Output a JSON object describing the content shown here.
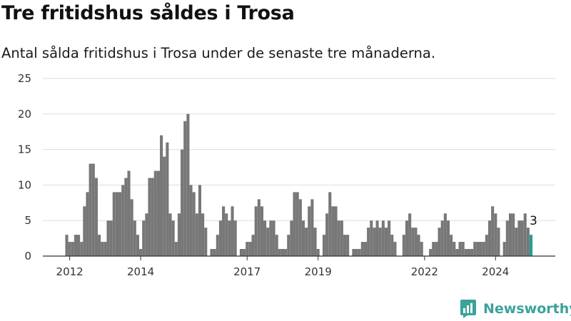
{
  "title": "Tre fritidshus såldes i Trosa",
  "subtitle": "Antal sålda fritidshus i Trosa under de senaste tre månaderna.",
  "brand": "Newsworthy",
  "colors": {
    "bar": "#777777",
    "highlight": "#2a9d8f",
    "grid": "#dddddd",
    "brand": "#3aa39a"
  },
  "chart_data": {
    "type": "bar",
    "x_ticks": [
      "2012",
      "2014",
      "2017",
      "2019",
      "2022",
      "2024"
    ],
    "ylim": [
      0,
      25
    ],
    "y_ticks": [
      0,
      5,
      10,
      15,
      20,
      25
    ],
    "xlabel": "",
    "ylabel": "",
    "grid": true,
    "period": "monthly, 2011-12 to 2024-12",
    "values": [
      3,
      2,
      2,
      3,
      3,
      2,
      7,
      9,
      13,
      13,
      11,
      3,
      2,
      2,
      5,
      5,
      9,
      9,
      9,
      10,
      11,
      12,
      8,
      5,
      3,
      1,
      5,
      6,
      11,
      11,
      12,
      12,
      17,
      14,
      16,
      6,
      5,
      2,
      6,
      15,
      19,
      20,
      10,
      9,
      6,
      10,
      6,
      4,
      0,
      1,
      1,
      3,
      5,
      7,
      6,
      5,
      7,
      5,
      0,
      1,
      1,
      2,
      2,
      3,
      7,
      8,
      7,
      5,
      4,
      5,
      5,
      3,
      1,
      1,
      1,
      3,
      5,
      9,
      9,
      8,
      5,
      4,
      7,
      8,
      4,
      1,
      0,
      3,
      6,
      9,
      7,
      7,
      5,
      5,
      3,
      3,
      0,
      1,
      1,
      1,
      2,
      2,
      4,
      5,
      4,
      5,
      4,
      5,
      4,
      5,
      3,
      2,
      0,
      0,
      3,
      5,
      6,
      4,
      4,
      3,
      2,
      0,
      0,
      1,
      2,
      2,
      4,
      5,
      6,
      5,
      3,
      2,
      1,
      2,
      2,
      1,
      1,
      1,
      2,
      2,
      2,
      2,
      3,
      5,
      7,
      6,
      4,
      0,
      2,
      5,
      6,
      6,
      4,
      5,
      5,
      6,
      4,
      3
    ],
    "last_value_label": "3"
  }
}
